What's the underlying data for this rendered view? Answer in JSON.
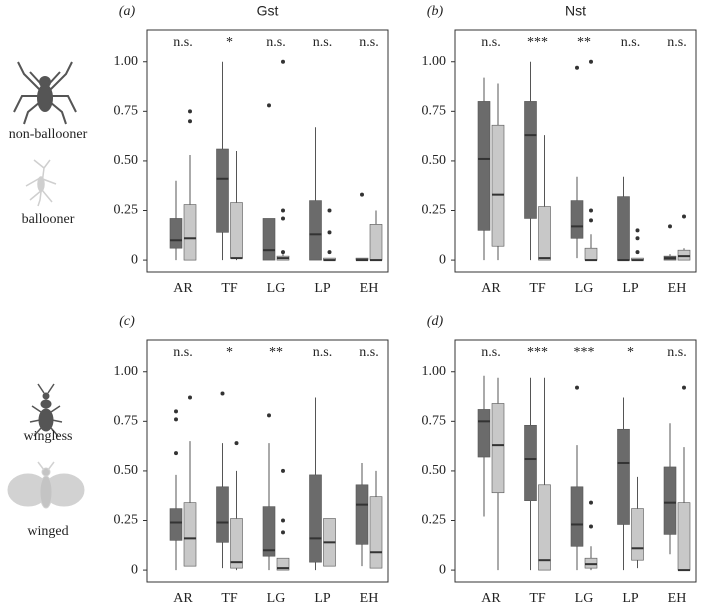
{
  "chart_data": [
    {
      "type": "box",
      "panel_label": "(a)",
      "title": "Gst",
      "categories": [
        "AR",
        "TF",
        "LG",
        "LP",
        "EH"
      ],
      "significance": [
        "n.s.",
        "*",
        "n.s.",
        "n.s.",
        "n.s."
      ],
      "ylim": [
        -0.06,
        1.16
      ],
      "yticks": [
        0,
        0.25,
        {
          "value": 0.5,
          "label": "0.50"
        },
        0.75,
        {
          "value": 1,
          "label": "1.00"
        }
      ],
      "series": [
        {
          "name": "non-ballooner",
          "color": "#6b6b6b",
          "min": [
            0,
            0,
            0,
            0,
            0
          ],
          "q1": [
            0.06,
            0.14,
            0,
            0,
            0
          ],
          "median": [
            0.1,
            0.41,
            0.05,
            0.13,
            0
          ],
          "q3": [
            0.21,
            0.56,
            0.21,
            0.3,
            0.01
          ],
          "max": [
            0.4,
            1,
            0.21,
            0.67,
            0.01
          ],
          "outliers": [
            [],
            [],
            [
              0.78
            ],
            [],
            [
              0.33
            ]
          ]
        },
        {
          "name": "ballooner",
          "color": "#c8c8c8",
          "min": [
            0,
            0,
            0,
            0,
            0
          ],
          "q1": [
            0,
            0.01,
            0,
            0,
            0
          ],
          "median": [
            0.11,
            0.01,
            0.01,
            0,
            0
          ],
          "q3": [
            0.28,
            0.29,
            0.02,
            0.01,
            0.18
          ],
          "max": [
            0.53,
            0.55,
            0.03,
            0.01,
            0.25
          ],
          "outliers": [
            [
              0.7,
              0.75
            ],
            [],
            [
              0.04,
              0.21,
              0.25,
              1
            ],
            [
              0.04,
              0.14,
              0.25
            ],
            []
          ]
        }
      ]
    },
    {
      "type": "box",
      "panel_label": "(b)",
      "title": "Nst",
      "categories": [
        "AR",
        "TF",
        "LG",
        "LP",
        "EH"
      ],
      "significance": [
        "n.s.",
        "***",
        "**",
        "n.s.",
        "n.s."
      ],
      "ylim": [
        -0.06,
        1.16
      ],
      "yticks": [
        0,
        0.25,
        {
          "value": 0.5,
          "label": "0.50"
        },
        0.75,
        {
          "value": 1,
          "label": "1.00"
        }
      ],
      "series": [
        {
          "color": "#6b6b6b",
          "min": [
            0,
            0,
            0.01,
            0,
            0
          ],
          "q1": [
            0.15,
            0.21,
            0.11,
            0,
            0
          ],
          "median": [
            0.51,
            0.63,
            0.17,
            0,
            0.01
          ],
          "q3": [
            0.8,
            0.8,
            0.3,
            0.32,
            0.02
          ],
          "max": [
            0.92,
            1,
            0.42,
            0.42,
            0.03
          ],
          "outliers": [
            [],
            [],
            [
              0.97
            ],
            [],
            [
              0.17
            ]
          ]
        },
        {
          "color": "#c8c8c8",
          "min": [
            0,
            0,
            0,
            0,
            0
          ],
          "q1": [
            0.07,
            0,
            0,
            0,
            0
          ],
          "median": [
            0.33,
            0.01,
            0,
            0,
            0.02
          ],
          "q3": [
            0.68,
            0.27,
            0.06,
            0.01,
            0.05
          ],
          "max": [
            0.89,
            0.63,
            0.13,
            0.01,
            0.06
          ],
          "outliers": [
            [],
            [],
            [
              0.2,
              0.25,
              1
            ],
            [
              0.04,
              0.11,
              0.15
            ],
            [
              0.22
            ]
          ]
        }
      ]
    },
    {
      "type": "box",
      "panel_label": "(c)",
      "categories": [
        "AR",
        "TF",
        "LG",
        "LP",
        "EH"
      ],
      "significance": [
        "n.s.",
        "*",
        "**",
        "n.s.",
        "n.s."
      ],
      "ylim": [
        -0.06,
        1.16
      ],
      "yticks": [
        0,
        0.25,
        {
          "value": 0.5,
          "label": "0.50"
        },
        0.75,
        {
          "value": 1,
          "label": "1.00"
        }
      ],
      "series": [
        {
          "name": "wingless",
          "color": "#6b6b6b",
          "min": [
            0,
            0.01,
            0,
            0,
            0.02
          ],
          "q1": [
            0.15,
            0.14,
            0.07,
            0.04,
            0.13
          ],
          "median": [
            0.24,
            0.24,
            0.1,
            0.16,
            0.33
          ],
          "q3": [
            0.31,
            0.42,
            0.32,
            0.48,
            0.43
          ],
          "max": [
            0.48,
            0.64,
            0.64,
            0.87,
            0.54
          ],
          "outliers": [
            [
              0.59,
              0.76,
              0.8
            ],
            [
              0.89
            ],
            [
              0.78
            ],
            [],
            []
          ]
        },
        {
          "name": "winged",
          "color": "#c8c8c8",
          "min": [
            0.02,
            0,
            0,
            0.02,
            0.01
          ],
          "q1": [
            0.02,
            0.01,
            0,
            0.02,
            0.01
          ],
          "median": [
            0.16,
            0.04,
            0.01,
            0.14,
            0.09
          ],
          "q3": [
            0.34,
            0.26,
            0.06,
            0.26,
            0.37
          ],
          "max": [
            0.65,
            0.5,
            0.06,
            0.26,
            0.5
          ],
          "outliers": [
            [
              0.87
            ],
            [
              0.64
            ],
            [
              0.19,
              0.25,
              0.5
            ],
            [],
            []
          ]
        }
      ]
    },
    {
      "type": "box",
      "panel_label": "(d)",
      "categories": [
        "AR",
        "TF",
        "LG",
        "LP",
        "EH"
      ],
      "significance": [
        "n.s.",
        "***",
        "***",
        "*",
        "n.s."
      ],
      "ylim": [
        -0.06,
        1.16
      ],
      "yticks": [
        0,
        0.25,
        {
          "value": 0.5,
          "label": "0.50"
        },
        0.75,
        {
          "value": 1,
          "label": "1.00"
        }
      ],
      "series": [
        {
          "color": "#6b6b6b",
          "min": [
            0.27,
            0,
            0,
            0,
            0.08
          ],
          "q1": [
            0.57,
            0.35,
            0.12,
            0.23,
            0.18
          ],
          "median": [
            0.75,
            0.56,
            0.23,
            0.54,
            0.34
          ],
          "q3": [
            0.81,
            0.73,
            0.42,
            0.71,
            0.52
          ],
          "max": [
            0.98,
            0.97,
            0.63,
            0.87,
            0.74
          ],
          "outliers": [
            [],
            [],
            [
              0.92
            ],
            [],
            []
          ]
        },
        {
          "color": "#c8c8c8",
          "min": [
            0,
            0,
            0,
            0.01,
            0
          ],
          "q1": [
            0.39,
            0,
            0.01,
            0.05,
            0
          ],
          "median": [
            0.63,
            0.05,
            0.03,
            0.11,
            0
          ],
          "q3": [
            0.84,
            0.43,
            0.06,
            0.31,
            0.34
          ],
          "max": [
            0.97,
            0.97,
            0.12,
            0.47,
            0.62
          ],
          "outliers": [
            [],
            [],
            [
              0.22,
              0.34
            ],
            [],
            [
              0.92
            ]
          ]
        }
      ]
    }
  ]
}
